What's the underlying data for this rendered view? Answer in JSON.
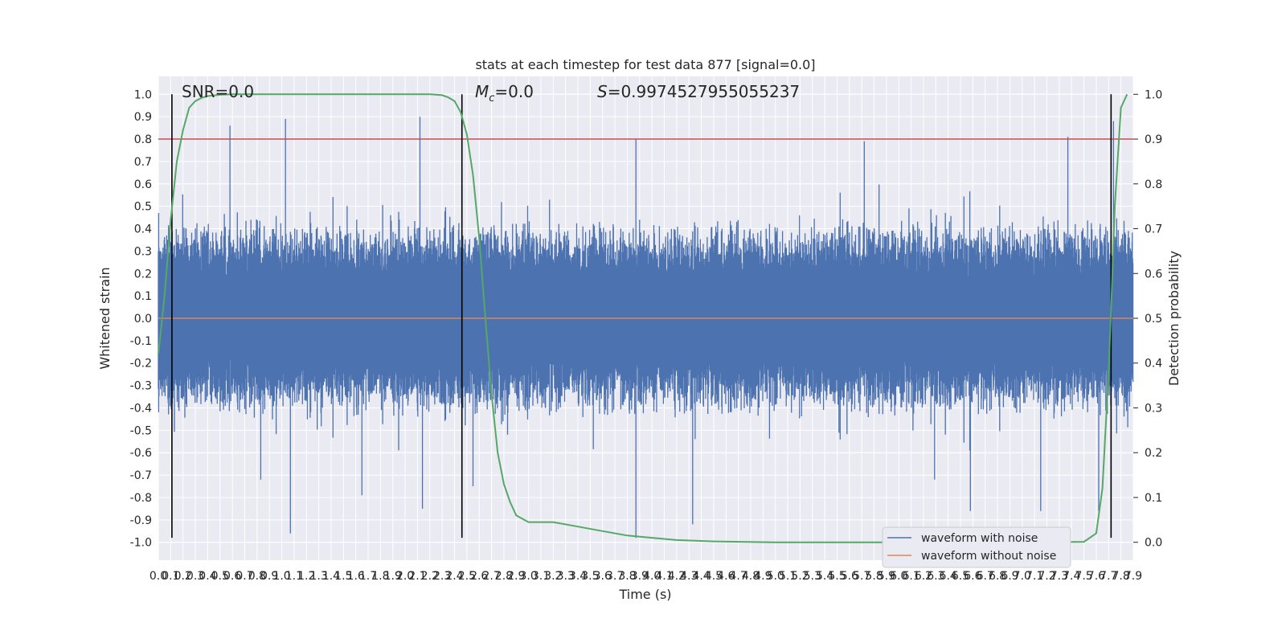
{
  "chart_data": {
    "type": "line",
    "title": "stats at each timestep for test data 877 [signal=0.0]",
    "xlabel": "Time (s)",
    "ylabel": "Whitened strain",
    "y2label": "Detection probability",
    "xlim": [
      0.0,
      7.9
    ],
    "ylim": [
      -1.08,
      1.08
    ],
    "y2lim": [
      -0.04,
      1.04
    ],
    "x_ticks": [
      0.0,
      0.1,
      0.2,
      0.3,
      0.4,
      0.5,
      0.6,
      0.7,
      0.8,
      0.9,
      1.0,
      1.1,
      1.2,
      1.3,
      1.4,
      1.5,
      1.6,
      1.7,
      1.8,
      1.9,
      2.0,
      2.1,
      2.2,
      2.3,
      2.4,
      2.5,
      2.6,
      2.7,
      2.8,
      2.9,
      3.0,
      3.1,
      3.2,
      3.3,
      3.4,
      3.5,
      3.6,
      3.7,
      3.8,
      3.9,
      4.0,
      4.1,
      4.2,
      4.3,
      4.4,
      4.5,
      4.6,
      4.7,
      4.8,
      4.9,
      5.0,
      5.1,
      5.2,
      5.3,
      5.4,
      5.5,
      5.6,
      5.7,
      5.8,
      5.9,
      6.0,
      6.1,
      6.2,
      6.3,
      6.4,
      6.5,
      6.6,
      6.7,
      6.8,
      6.9,
      7.0,
      7.1,
      7.2,
      7.3,
      7.4,
      7.5,
      7.6,
      7.7,
      7.8,
      7.9
    ],
    "y_ticks": [
      1.0,
      0.9,
      0.8,
      0.7,
      0.6,
      0.5,
      0.4,
      0.3,
      0.2,
      0.1,
      0.0,
      -0.1,
      -0.2,
      -0.3,
      -0.4,
      -0.5,
      -0.6,
      -0.7,
      -0.8,
      -0.9,
      -1.0
    ],
    "y2_ticks": [
      1.0,
      0.9,
      0.8,
      0.7,
      0.6,
      0.5,
      0.4,
      0.3,
      0.2,
      0.1,
      0.0
    ],
    "annotations": {
      "snr": "SNR=0.0",
      "mc": "=0.0",
      "mc_symbol": "M",
      "mc_subscript": "c",
      "s": "=0.9974527955055237",
      "s_symbol": "S"
    },
    "threshold": 0.8,
    "vertical_markers_s": [
      0.11,
      2.46,
      7.72
    ],
    "series": [
      {
        "name": "waveform with noise",
        "color": "#4c72b0",
        "kind": "noise",
        "typical_amplitude": 0.45,
        "peaks": [
          {
            "x": 0.58,
            "y": 0.86
          },
          {
            "x": 1.03,
            "y": 0.89
          },
          {
            "x": 2.12,
            "y": 0.9
          },
          {
            "x": 3.87,
            "y": 0.8
          },
          {
            "x": 5.72,
            "y": 0.79
          },
          {
            "x": 7.37,
            "y": 0.81
          },
          {
            "x": 7.74,
            "y": 0.88
          },
          {
            "x": 1.07,
            "y": -0.96
          },
          {
            "x": 2.14,
            "y": -0.85
          },
          {
            "x": 3.87,
            "y": -0.98
          },
          {
            "x": 4.33,
            "y": -0.92
          },
          {
            "x": 6.58,
            "y": -0.86
          },
          {
            "x": 7.15,
            "y": -0.86
          },
          {
            "x": 7.62,
            "y": -0.86
          },
          {
            "x": 0.83,
            "y": -0.72
          },
          {
            "x": 1.65,
            "y": -0.79
          },
          {
            "x": 2.55,
            "y": -0.75
          },
          {
            "x": 6.29,
            "y": -0.72
          }
        ]
      },
      {
        "name": "waveform without noise",
        "color": "#dd8452",
        "x": [
          0.0,
          7.9
        ],
        "y": [
          0.0,
          0.0
        ]
      },
      {
        "name": "",
        "color": "#55a868",
        "axis": "right",
        "x": [
          0.0,
          0.05,
          0.1,
          0.15,
          0.2,
          0.25,
          0.3,
          0.35,
          0.4,
          0.5,
          0.6,
          0.8,
          1.0,
          1.5,
          2.0,
          2.2,
          2.3,
          2.35,
          2.4,
          2.45,
          2.5,
          2.55,
          2.6,
          2.65,
          2.7,
          2.75,
          2.8,
          2.85,
          2.9,
          3.0,
          3.2,
          3.4,
          3.6,
          3.8,
          4.0,
          4.2,
          4.5,
          5.0,
          6.0,
          7.0,
          7.5,
          7.6,
          7.65,
          7.7,
          7.72,
          7.75,
          7.8,
          7.85
        ],
        "y": [
          0.42,
          0.55,
          0.72,
          0.85,
          0.92,
          0.97,
          0.985,
          0.992,
          0.996,
          0.999,
          1.0,
          1.0,
          1.0,
          1.0,
          1.0,
          1.0,
          0.998,
          0.993,
          0.985,
          0.96,
          0.91,
          0.82,
          0.68,
          0.5,
          0.33,
          0.2,
          0.13,
          0.09,
          0.06,
          0.045,
          0.045,
          0.035,
          0.025,
          0.015,
          0.01,
          0.005,
          0.002,
          0.0,
          0.0,
          0.0,
          0.001,
          0.02,
          0.12,
          0.38,
          0.52,
          0.75,
          0.97,
          1.0
        ]
      }
    ],
    "threshold_color": "#c44e52",
    "marker_color": "#000000",
    "plot_bg": "#eaeaf2",
    "grid": true,
    "legend_location": "lower-right"
  }
}
